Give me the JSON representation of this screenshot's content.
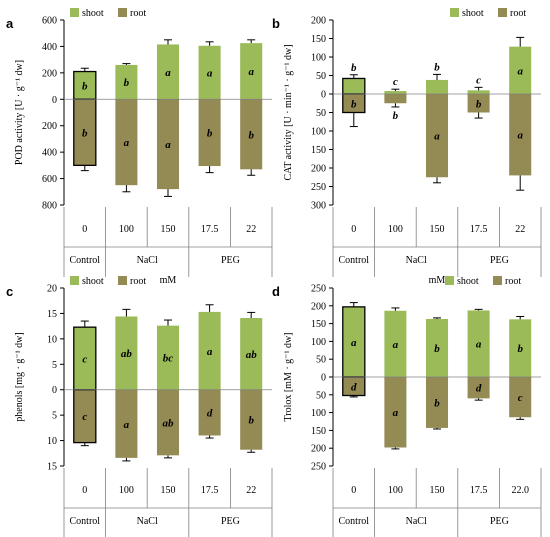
{
  "colors": {
    "shoot": "#9bbb59",
    "root": "#948a54",
    "axis": "#000000",
    "grid": "#808080"
  },
  "legend": {
    "shoot": "shoot",
    "root": "root"
  },
  "chart_data": [
    {
      "panel": "a",
      "type": "bar",
      "ylabel": "POD activity [U · g⁻¹ dw]",
      "ylim": [
        -800,
        600
      ],
      "yticks": [
        600,
        400,
        200,
        0,
        -200,
        -400,
        -600,
        -800
      ],
      "ytick_labels": [
        "600",
        "400",
        "200",
        "0",
        "200",
        "400",
        "600",
        "800"
      ],
      "categories": [
        "0",
        "100",
        "150",
        "17.5",
        "22"
      ],
      "groups": [
        "Control",
        "NaCl",
        "PEG"
      ],
      "unit": "mM",
      "series": [
        {
          "name": "shoot",
          "values": [
            210,
            260,
            415,
            405,
            425
          ],
          "errors": [
            25,
            10,
            35,
            30,
            25
          ],
          "letters": [
            "b",
            "b",
            "a",
            "a",
            "a"
          ]
        },
        {
          "name": "root",
          "values": [
            -500,
            -650,
            -680,
            -505,
            -530
          ],
          "errors": [
            40,
            50,
            55,
            50,
            45
          ],
          "letters": [
            "b",
            "a",
            "a",
            "b",
            "b"
          ]
        }
      ]
    },
    {
      "panel": "b",
      "type": "bar",
      "ylabel": "CAT activity [U · min⁻¹ · g⁻¹ dw]",
      "ylim": [
        -300,
        200
      ],
      "yticks": [
        200,
        150,
        100,
        50,
        0,
        -50,
        -100,
        -150,
        -200,
        -250,
        -300
      ],
      "ytick_labels": [
        "200",
        "150",
        "100",
        "50",
        "0",
        "50",
        "100",
        "150",
        "200",
        "250",
        "300"
      ],
      "categories": [
        "0",
        "100",
        "150",
        "17.5",
        "22"
      ],
      "groups": [
        "Control",
        "NaCl",
        "PEG"
      ],
      "unit": "mM",
      "series": [
        {
          "name": "shoot",
          "values": [
            42,
            8,
            38,
            10,
            128
          ],
          "errors": [
            10,
            5,
            15,
            8,
            25
          ],
          "letters": [
            "b",
            "c",
            "b",
            "c",
            "a"
          ]
        },
        {
          "name": "root",
          "values": [
            -50,
            -25,
            -225,
            -50,
            -220
          ],
          "errors": [
            38,
            10,
            15,
            15,
            40
          ],
          "letters": [
            "b",
            "b",
            "a",
            "b",
            "a"
          ]
        }
      ]
    },
    {
      "panel": "c",
      "type": "bar",
      "ylabel": "phenols [mg · g⁻¹ dw]",
      "ylim": [
        -15,
        20
      ],
      "yticks": [
        20,
        15,
        10,
        5,
        0,
        -5,
        -10,
        -15
      ],
      "ytick_labels": [
        "20",
        "15",
        "10",
        "5",
        "0",
        "5",
        "10",
        "15"
      ],
      "categories": [
        "0",
        "100",
        "150",
        "17.5",
        "22"
      ],
      "groups": [
        "Control",
        "NaCl",
        "PEG"
      ],
      "unit": "mM",
      "series": [
        {
          "name": "shoot",
          "values": [
            12.3,
            14.4,
            12.6,
            15.3,
            14.1
          ],
          "errors": [
            1.2,
            1.4,
            1.1,
            1.4,
            1.1
          ],
          "letters": [
            "c",
            "ab",
            "bc",
            "a",
            "ab"
          ]
        },
        {
          "name": "root",
          "values": [
            -10.4,
            -13.4,
            -12.9,
            -9.0,
            -11.8
          ],
          "errors": [
            0.6,
            0.6,
            0.5,
            0.5,
            0.5
          ],
          "letters": [
            "c",
            "a",
            "ab",
            "d",
            "b"
          ]
        }
      ]
    },
    {
      "panel": "d",
      "type": "bar",
      "ylabel": "Trolox [mM · g⁻¹ dw]",
      "ylim": [
        -250,
        250
      ],
      "yticks": [
        250,
        200,
        150,
        100,
        50,
        0,
        -50,
        -100,
        -150,
        -200,
        -250
      ],
      "ytick_labels": [
        "250",
        "200",
        "150",
        "100",
        "50",
        "0",
        "50",
        "100",
        "150",
        "200",
        "250"
      ],
      "categories": [
        "0",
        "100",
        "150",
        "17.5",
        "22.0"
      ],
      "groups": [
        "Control",
        "NaCl",
        "PEG"
      ],
      "unit": "mM",
      "series": [
        {
          "name": "shoot",
          "values": [
            197,
            186,
            163,
            187,
            162
          ],
          "errors": [
            12,
            8,
            3,
            3,
            8
          ],
          "letters": [
            "a",
            "a",
            "b",
            "a",
            "b"
          ]
        },
        {
          "name": "root",
          "values": [
            -52,
            -198,
            -143,
            -60,
            -113
          ],
          "errors": [
            4,
            4,
            3,
            5,
            6
          ],
          "letters": [
            "d",
            "a",
            "b",
            "d",
            "c"
          ]
        }
      ]
    }
  ]
}
